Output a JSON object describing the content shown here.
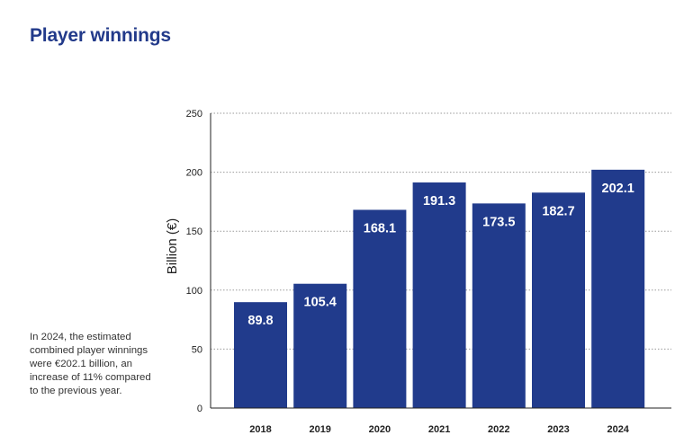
{
  "title": "Player winnings",
  "note": "In 2024, the estimated combined player winnings were €202.1 billion, an increase of 11% compared to the previous year.",
  "colors": {
    "title": "#223a8a",
    "bar": "#213b8c",
    "grid": "#9a9a9a"
  },
  "chart_data": {
    "type": "bar",
    "categories": [
      "2018",
      "2019",
      "2020",
      "2021",
      "2022",
      "2023",
      "2024"
    ],
    "values": [
      89.8,
      105.4,
      168.1,
      191.3,
      173.5,
      182.7,
      202.1
    ],
    "data_labels": [
      "89.8",
      "105.4",
      "168.1",
      "191.3",
      "173.5",
      "182.7",
      "202.1"
    ],
    "xlabel": "",
    "ylabel": "Billion (€)",
    "ylim": [
      0,
      250
    ],
    "yticks": [
      0,
      50,
      100,
      150,
      200,
      250
    ],
    "grid": true,
    "legend": "none"
  }
}
